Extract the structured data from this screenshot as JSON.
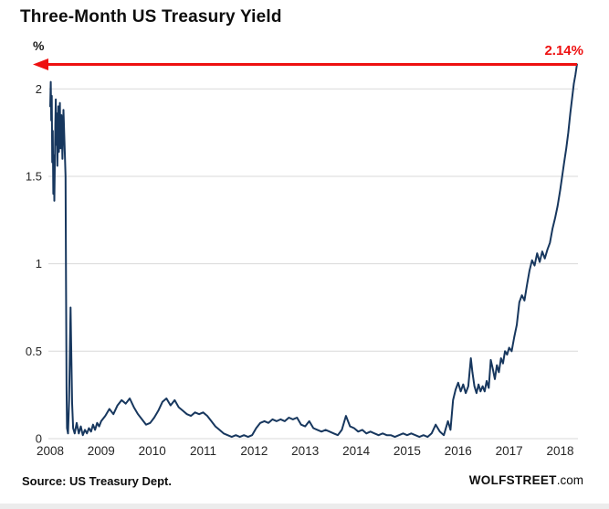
{
  "page": {
    "background": "#ffffff"
  },
  "chart_data": {
    "type": "line",
    "title": "Three-Month US Treasury Yield",
    "y_unit": "%",
    "xlabel": "",
    "ylabel": "",
    "grid": "horizontal",
    "grid_color": "#d9d9d9",
    "tick_color": "#262626",
    "xlim": [
      2008,
      2018.35
    ],
    "ylim": [
      0,
      2.2
    ],
    "x_ticks": [
      2008,
      2009,
      2010,
      2011,
      2012,
      2013,
      2014,
      2015,
      2016,
      2017,
      2018
    ],
    "y_ticks": [
      0,
      0.5,
      1,
      1.5,
      2
    ],
    "y_tick_labels": [
      "0",
      "0.5",
      "1",
      "1.5",
      "2"
    ],
    "annotation": {
      "label": "2.14%",
      "value": 2.14,
      "color": "#ee1111",
      "type": "arrow-left"
    },
    "series": [
      {
        "name": "3-month US Treasury yield",
        "color": "#17375e",
        "points": [
          [
            2008.0,
            1.9
          ],
          [
            2008.01,
            2.04
          ],
          [
            2008.02,
            1.82
          ],
          [
            2008.03,
            1.96
          ],
          [
            2008.04,
            1.58
          ],
          [
            2008.05,
            1.76
          ],
          [
            2008.06,
            1.4
          ],
          [
            2008.07,
            1.62
          ],
          [
            2008.08,
            1.36
          ],
          [
            2008.09,
            1.55
          ],
          [
            2008.1,
            1.8
          ],
          [
            2008.11,
            1.94
          ],
          [
            2008.12,
            1.68
          ],
          [
            2008.13,
            1.86
          ],
          [
            2008.14,
            1.56
          ],
          [
            2008.15,
            1.74
          ],
          [
            2008.16,
            1.9
          ],
          [
            2008.17,
            1.64
          ],
          [
            2008.18,
            1.82
          ],
          [
            2008.19,
            1.92
          ],
          [
            2008.2,
            1.66
          ],
          [
            2008.22,
            1.85
          ],
          [
            2008.24,
            1.6
          ],
          [
            2008.26,
            1.88
          ],
          [
            2008.28,
            1.7
          ],
          [
            2008.3,
            1.5
          ],
          [
            2008.31,
            0.9
          ],
          [
            2008.32,
            0.28
          ],
          [
            2008.33,
            0.06
          ],
          [
            2008.35,
            0.03
          ],
          [
            2008.37,
            0.22
          ],
          [
            2008.39,
            0.6
          ],
          [
            2008.4,
            0.75
          ],
          [
            2008.41,
            0.55
          ],
          [
            2008.43,
            0.2
          ],
          [
            2008.45,
            0.06
          ],
          [
            2008.48,
            0.03
          ],
          [
            2008.52,
            0.09
          ],
          [
            2008.56,
            0.03
          ],
          [
            2008.6,
            0.07
          ],
          [
            2008.64,
            0.02
          ],
          [
            2008.68,
            0.05
          ],
          [
            2008.72,
            0.03
          ],
          [
            2008.76,
            0.06
          ],
          [
            2008.8,
            0.04
          ],
          [
            2008.84,
            0.08
          ],
          [
            2008.88,
            0.05
          ],
          [
            2008.92,
            0.09
          ],
          [
            2008.96,
            0.07
          ],
          [
            2009.0,
            0.1
          ],
          [
            2009.08,
            0.13
          ],
          [
            2009.16,
            0.17
          ],
          [
            2009.24,
            0.14
          ],
          [
            2009.32,
            0.19
          ],
          [
            2009.4,
            0.22
          ],
          [
            2009.48,
            0.2
          ],
          [
            2009.56,
            0.23
          ],
          [
            2009.64,
            0.18
          ],
          [
            2009.72,
            0.14
          ],
          [
            2009.8,
            0.11
          ],
          [
            2009.88,
            0.08
          ],
          [
            2009.96,
            0.09
          ],
          [
            2010.04,
            0.12
          ],
          [
            2010.12,
            0.16
          ],
          [
            2010.2,
            0.21
          ],
          [
            2010.28,
            0.23
          ],
          [
            2010.36,
            0.19
          ],
          [
            2010.44,
            0.22
          ],
          [
            2010.52,
            0.18
          ],
          [
            2010.6,
            0.16
          ],
          [
            2010.68,
            0.14
          ],
          [
            2010.76,
            0.13
          ],
          [
            2010.84,
            0.15
          ],
          [
            2010.92,
            0.14
          ],
          [
            2011.0,
            0.15
          ],
          [
            2011.08,
            0.13
          ],
          [
            2011.16,
            0.1
          ],
          [
            2011.24,
            0.07
          ],
          [
            2011.32,
            0.05
          ],
          [
            2011.4,
            0.03
          ],
          [
            2011.48,
            0.02
          ],
          [
            2011.56,
            0.01
          ],
          [
            2011.64,
            0.02
          ],
          [
            2011.72,
            0.01
          ],
          [
            2011.8,
            0.02
          ],
          [
            2011.88,
            0.01
          ],
          [
            2011.96,
            0.02
          ],
          [
            2012.04,
            0.06
          ],
          [
            2012.12,
            0.09
          ],
          [
            2012.2,
            0.1
          ],
          [
            2012.28,
            0.09
          ],
          [
            2012.36,
            0.11
          ],
          [
            2012.44,
            0.1
          ],
          [
            2012.52,
            0.11
          ],
          [
            2012.6,
            0.1
          ],
          [
            2012.68,
            0.12
          ],
          [
            2012.76,
            0.11
          ],
          [
            2012.84,
            0.12
          ],
          [
            2012.92,
            0.08
          ],
          [
            2013.0,
            0.07
          ],
          [
            2013.08,
            0.1
          ],
          [
            2013.16,
            0.06
          ],
          [
            2013.24,
            0.05
          ],
          [
            2013.32,
            0.04
          ],
          [
            2013.4,
            0.05
          ],
          [
            2013.48,
            0.04
          ],
          [
            2013.56,
            0.03
          ],
          [
            2013.64,
            0.02
          ],
          [
            2013.72,
            0.05
          ],
          [
            2013.8,
            0.13
          ],
          [
            2013.88,
            0.07
          ],
          [
            2013.96,
            0.06
          ],
          [
            2014.04,
            0.04
          ],
          [
            2014.12,
            0.05
          ],
          [
            2014.2,
            0.03
          ],
          [
            2014.28,
            0.04
          ],
          [
            2014.36,
            0.03
          ],
          [
            2014.44,
            0.02
          ],
          [
            2014.52,
            0.03
          ],
          [
            2014.6,
            0.02
          ],
          [
            2014.68,
            0.02
          ],
          [
            2014.76,
            0.01
          ],
          [
            2014.84,
            0.02
          ],
          [
            2014.92,
            0.03
          ],
          [
            2015.0,
            0.02
          ],
          [
            2015.08,
            0.03
          ],
          [
            2015.16,
            0.02
          ],
          [
            2015.24,
            0.01
          ],
          [
            2015.32,
            0.02
          ],
          [
            2015.4,
            0.01
          ],
          [
            2015.48,
            0.03
          ],
          [
            2015.56,
            0.08
          ],
          [
            2015.64,
            0.04
          ],
          [
            2015.72,
            0.02
          ],
          [
            2015.8,
            0.1
          ],
          [
            2015.85,
            0.05
          ],
          [
            2015.9,
            0.22
          ],
          [
            2015.95,
            0.28
          ],
          [
            2016.0,
            0.32
          ],
          [
            2016.05,
            0.27
          ],
          [
            2016.1,
            0.31
          ],
          [
            2016.15,
            0.26
          ],
          [
            2016.2,
            0.3
          ],
          [
            2016.25,
            0.46
          ],
          [
            2016.28,
            0.38
          ],
          [
            2016.32,
            0.3
          ],
          [
            2016.36,
            0.26
          ],
          [
            2016.4,
            0.31
          ],
          [
            2016.44,
            0.27
          ],
          [
            2016.48,
            0.3
          ],
          [
            2016.52,
            0.27
          ],
          [
            2016.56,
            0.33
          ],
          [
            2016.6,
            0.29
          ],
          [
            2016.64,
            0.45
          ],
          [
            2016.68,
            0.4
          ],
          [
            2016.72,
            0.34
          ],
          [
            2016.76,
            0.42
          ],
          [
            2016.8,
            0.38
          ],
          [
            2016.84,
            0.46
          ],
          [
            2016.88,
            0.43
          ],
          [
            2016.92,
            0.5
          ],
          [
            2016.96,
            0.48
          ],
          [
            2017.0,
            0.52
          ],
          [
            2017.05,
            0.5
          ],
          [
            2017.1,
            0.58
          ],
          [
            2017.15,
            0.65
          ],
          [
            2017.2,
            0.78
          ],
          [
            2017.25,
            0.82
          ],
          [
            2017.3,
            0.79
          ],
          [
            2017.35,
            0.88
          ],
          [
            2017.4,
            0.96
          ],
          [
            2017.45,
            1.02
          ],
          [
            2017.5,
            0.99
          ],
          [
            2017.55,
            1.06
          ],
          [
            2017.6,
            1.01
          ],
          [
            2017.65,
            1.07
          ],
          [
            2017.7,
            1.03
          ],
          [
            2017.75,
            1.08
          ],
          [
            2017.8,
            1.12
          ],
          [
            2017.85,
            1.2
          ],
          [
            2017.9,
            1.26
          ],
          [
            2017.95,
            1.33
          ],
          [
            2018.0,
            1.42
          ],
          [
            2018.04,
            1.5
          ],
          [
            2018.08,
            1.58
          ],
          [
            2018.12,
            1.66
          ],
          [
            2018.16,
            1.75
          ],
          [
            2018.2,
            1.86
          ],
          [
            2018.24,
            1.96
          ],
          [
            2018.27,
            2.03
          ],
          [
            2018.3,
            2.08
          ],
          [
            2018.33,
            2.14
          ]
        ]
      }
    ]
  },
  "footer": {
    "source": "Source: US Treasury Dept.",
    "brand_bold": "WOLFSTREET",
    "brand_suffix": ".com"
  }
}
